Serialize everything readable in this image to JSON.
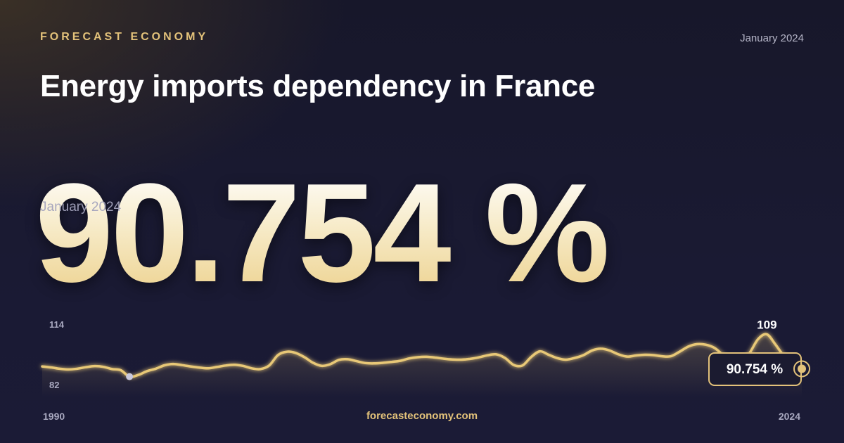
{
  "brand": "FORECAST ECONOMY",
  "header_date": "January 2024",
  "title": "Energy imports dependency in France",
  "headline_value": "90.754 %",
  "overlay_date": "January 2024",
  "footer_site": "forecasteconomy.com",
  "colors": {
    "accent": "#e3c27a",
    "line": "#e8c877",
    "min_marker": "#c9c9dd"
  },
  "chart_data": {
    "type": "line",
    "title": "",
    "xlabel": "",
    "ylabel": "",
    "x_start_label": "1990",
    "x_end_label": "2024",
    "ylim": [
      82,
      114
    ],
    "y_tick_labels": [
      "114",
      "82"
    ],
    "max_label": "109",
    "current_label": "90.754 %",
    "series": [
      {
        "values": [
          92,
          91.5,
          90.8,
          90.4,
          90.8,
          91.6,
          92.2,
          91.8,
          90.6,
          90.0,
          86.6,
          87.5,
          89.5,
          90.8,
          92.6,
          93.3,
          92.7,
          92.0,
          91.4,
          91.0,
          91.7,
          92.5,
          92.9,
          92.3,
          91.0,
          90.6,
          92.5,
          98.0,
          99.8,
          99.2,
          97.0,
          94.0,
          92.3,
          93.2,
          95.5,
          95.8,
          94.8,
          93.8,
          93.6,
          93.9,
          94.4,
          95.0,
          96.2,
          96.9,
          97.1,
          96.7,
          96.1,
          95.7,
          95.6,
          96.0,
          96.8,
          97.9,
          98.4,
          96.5,
          92.8,
          92.5,
          97.0,
          100.0,
          98.2,
          96.4,
          95.6,
          96.5,
          98.0,
          100.5,
          101.4,
          100.4,
          98.4,
          97.2,
          97.8,
          98.2,
          98.0,
          97.4,
          97.4,
          99.8,
          102.5,
          103.8,
          103.5,
          101.8,
          98.0,
          94.6,
          94.0,
          99.0,
          106.5,
          109.0,
          103.5,
          97.5,
          96.2,
          90.754
        ]
      }
    ]
  }
}
